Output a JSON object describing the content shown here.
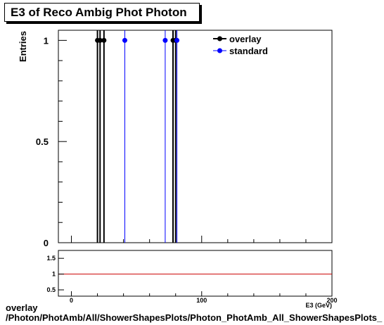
{
  "title": "E3 of Reco Ambig Phot Photon",
  "ylabel": "Entries",
  "xlabel_cut": "E3 (GeV)",
  "footer": {
    "line1": "overlay",
    "line2": "/Photon/PhotAmb/All/ShowerShapesPlots/Photon_PhotAmb_All_ShowerShapesPlots_"
  },
  "colors": {
    "overlay": "#000000",
    "standard": "#0000ff",
    "ratio_line": "#cc0000"
  },
  "chart_data": [
    {
      "type": "scatter",
      "title": "E3 of Reco Ambig Phot Photon",
      "ylabel": "Entries",
      "xlim": [
        -10,
        200
      ],
      "ylim": [
        0,
        1.05
      ],
      "yticks": [
        {
          "value": 0,
          "label": "0"
        },
        {
          "value": 0.5,
          "label": "0.5"
        },
        {
          "value": 1,
          "label": "1"
        }
      ],
      "legend": {
        "placement": "top-right"
      },
      "series": [
        {
          "name": "overlay",
          "color": "#000000",
          "x": [
            20,
            22,
            25,
            78,
            80
          ],
          "y": [
            1,
            1,
            1,
            1,
            1
          ]
        },
        {
          "name": "standard",
          "color": "#0000ff",
          "x": [
            41,
            72,
            81
          ],
          "y": [
            1,
            1,
            1
          ]
        }
      ]
    },
    {
      "type": "line",
      "xlim": [
        -10,
        200
      ],
      "ylim": [
        0.3,
        1.75
      ],
      "xticks": [
        {
          "value": 0,
          "label": "0"
        },
        {
          "value": 100,
          "label": "100"
        },
        {
          "value": 200,
          "label": "200"
        }
      ],
      "yticks": [
        {
          "value": 0.5,
          "label": "0.5"
        },
        {
          "value": 1,
          "label": "1"
        },
        {
          "value": 1.5,
          "label": "1.5"
        }
      ],
      "reference_line": 1
    }
  ]
}
